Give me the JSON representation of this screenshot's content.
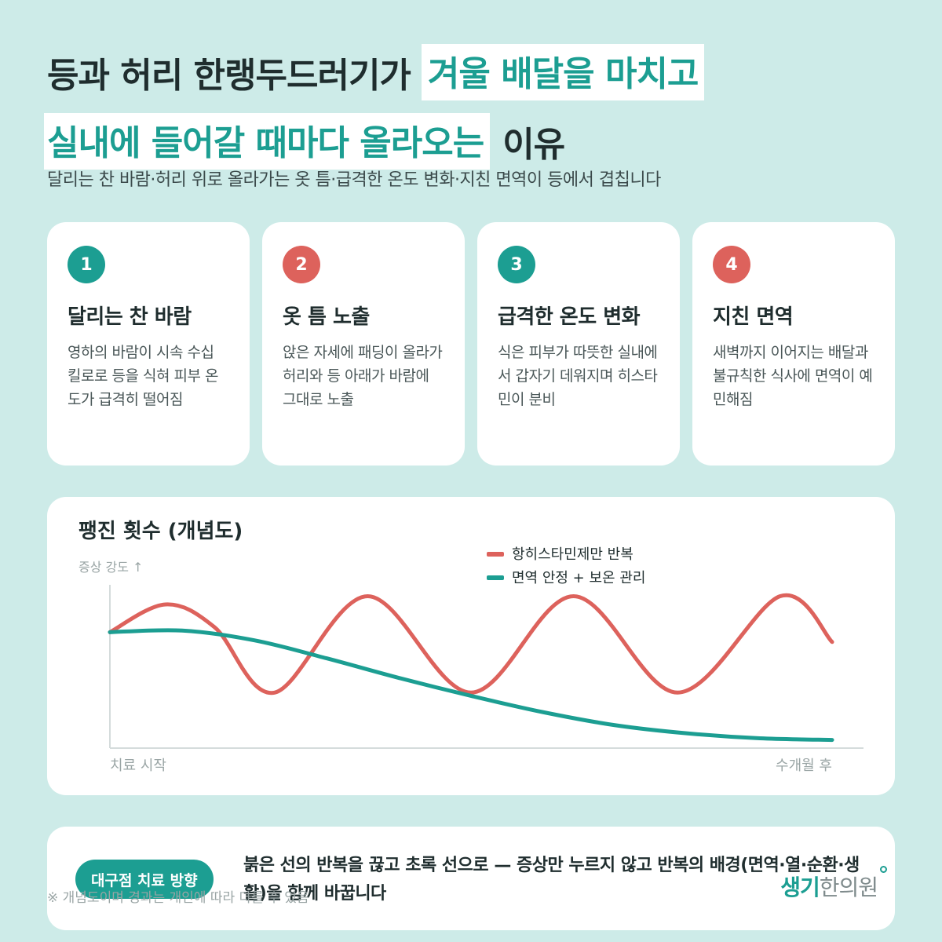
{
  "title": {
    "line1_plain": "등과 허리 한랭두드러기가",
    "line1_highlight": "겨울 배달을 마치고",
    "line2_highlight": "실내에 들어갈 때마다 올라오는",
    "line2_plain": "이유"
  },
  "subtitle": "달리는 찬 바람·허리 위로 올라가는 옷 틈·급격한 온도 변화·지친 면역이 등에서 겹칩니다",
  "cards": [
    {
      "number": "1",
      "title": "달리는 찬 바람",
      "desc": "영하의 바람이 시속 수십 킬로로 등을 식혀 피부 온도가 급격히 떨어짐",
      "color": "#1c9e92"
    },
    {
      "number": "2",
      "title": "옷 틈 노출",
      "desc": "앉은 자세에 패딩이 올라가 허리와 등 아래가 바람에 그대로 노출",
      "color": "#dd625c"
    },
    {
      "number": "3",
      "title": "급격한 온도 변화",
      "desc": "식은 피부가 따뜻한 실내에서 갑자기 데워지며 히스타민이 분비",
      "color": "#1c9e92"
    },
    {
      "number": "4",
      "title": "지친 면역",
      "desc": "새벽까지 이어지는 배달과 불규칙한 식사에 면역이 예민해짐",
      "color": "#dd625c"
    }
  ],
  "chart_data": {
    "type": "line",
    "title": "팽진 횟수 (개념도)",
    "ylabel": "증상 강도 ↑",
    "x_tick_labels": [
      "치료 시작",
      "수개월 후"
    ],
    "x_range": [
      0,
      1
    ],
    "ylim": [
      0,
      1
    ],
    "legend_position": "top-right",
    "grid": false,
    "series": [
      {
        "name": "항히스타민제만 반복",
        "color": "#dd625c",
        "x": [
          0,
          0.077,
          0.145,
          0.228,
          0.357,
          0.5,
          0.642,
          0.786,
          0.928,
          1.0
        ],
        "y": [
          0.71,
          0.88,
          0.74,
          0.34,
          0.93,
          0.34,
          0.93,
          0.34,
          0.93,
          0.65
        ]
      },
      {
        "name": "면역 안정 + 보온 관리",
        "color": "#1c9e92",
        "x": [
          0,
          0.1,
          0.2,
          0.3,
          0.4,
          0.5,
          0.6,
          0.7,
          0.8,
          0.9,
          1.0
        ],
        "y": [
          0.71,
          0.72,
          0.66,
          0.55,
          0.43,
          0.32,
          0.22,
          0.14,
          0.09,
          0.06,
          0.05
        ]
      }
    ]
  },
  "bottom": {
    "pill": "대구점 치료 방향",
    "message": "붉은 선의 반복을 끊고 초록 선으로 — 증상만 누르지 않고 반복의 배경(면역·열·순환·생활)을 함께 바꿉니다",
    "footnote": "※ 개념도이며 경과는 개인에 따라 다를 수 있음",
    "logo_part1": "생기",
    "logo_part2": "한의원"
  }
}
